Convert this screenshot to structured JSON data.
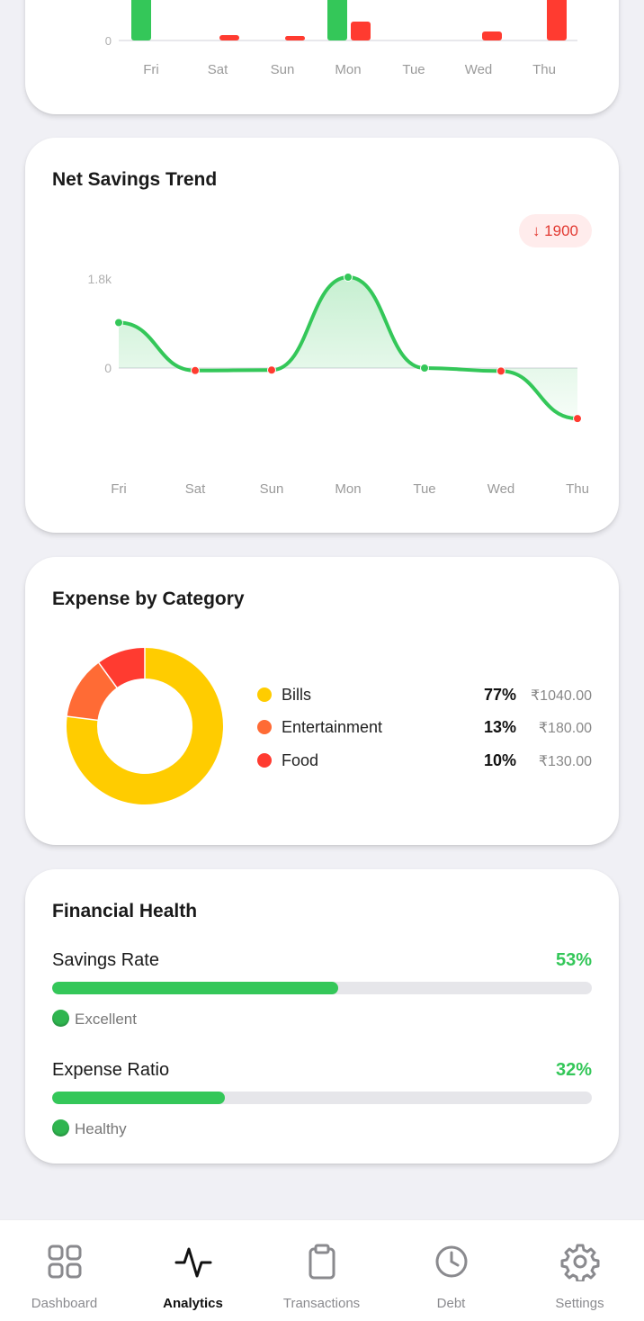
{
  "daily_chart": {
    "y_tick": "0",
    "days": [
      "Fri",
      "Sat",
      "Sun",
      "Mon",
      "Tue",
      "Wed",
      "Thu"
    ]
  },
  "savings_trend": {
    "title": "Net Savings Trend",
    "badge": "↓ 1900",
    "y_ticks": [
      "1.8k",
      "0"
    ],
    "chart_data": {
      "type": "line",
      "title": "Net Savings Trend",
      "x": [
        "Fri",
        "Sat",
        "Sun",
        "Mon",
        "Tue",
        "Wed",
        "Thu"
      ],
      "series": [
        {
          "values": [
            900,
            -50,
            -40,
            1800,
            0,
            -60,
            -1000
          ]
        }
      ],
      "ylim": [
        -1100,
        1800
      ]
    }
  },
  "expense_category": {
    "title": "Expense by Category",
    "chart_data": {
      "type": "pie",
      "categories": [
        "Bills",
        "Entertainment",
        "Food"
      ],
      "values": [
        77,
        13,
        10
      ],
      "amounts": [
        "₹1040.00",
        "₹180.00",
        "₹130.00"
      ],
      "colors": [
        "#ffcc00",
        "#ff6b35",
        "#ff3b30"
      ]
    },
    "items": [
      {
        "name": "Bills",
        "pct": "77%",
        "amount": "₹1040.00"
      },
      {
        "name": "Entertainment",
        "pct": "13%",
        "amount": "₹180.00"
      },
      {
        "name": "Food",
        "pct": "10%",
        "amount": "₹130.00"
      }
    ]
  },
  "financial_health": {
    "title": "Financial Health",
    "metrics": [
      {
        "label": "Savings Rate",
        "value": "53%",
        "fraction": 0.53,
        "status": "Excellent"
      },
      {
        "label": "Expense Ratio",
        "value": "32%",
        "fraction": 0.32,
        "status": "Healthy"
      }
    ]
  },
  "nav": {
    "items": [
      {
        "label": "Dashboard",
        "icon": "grid-icon"
      },
      {
        "label": "Analytics",
        "icon": "activity-icon"
      },
      {
        "label": "Transactions",
        "icon": "clipboard-icon"
      },
      {
        "label": "Debt",
        "icon": "clock-icon"
      },
      {
        "label": "Settings",
        "icon": "gear-icon"
      }
    ],
    "active": "Analytics"
  },
  "colors": {
    "green": "#34c759",
    "red": "#ff3b30",
    "yellow": "#ffcc00",
    "orange": "#ff6b35"
  }
}
